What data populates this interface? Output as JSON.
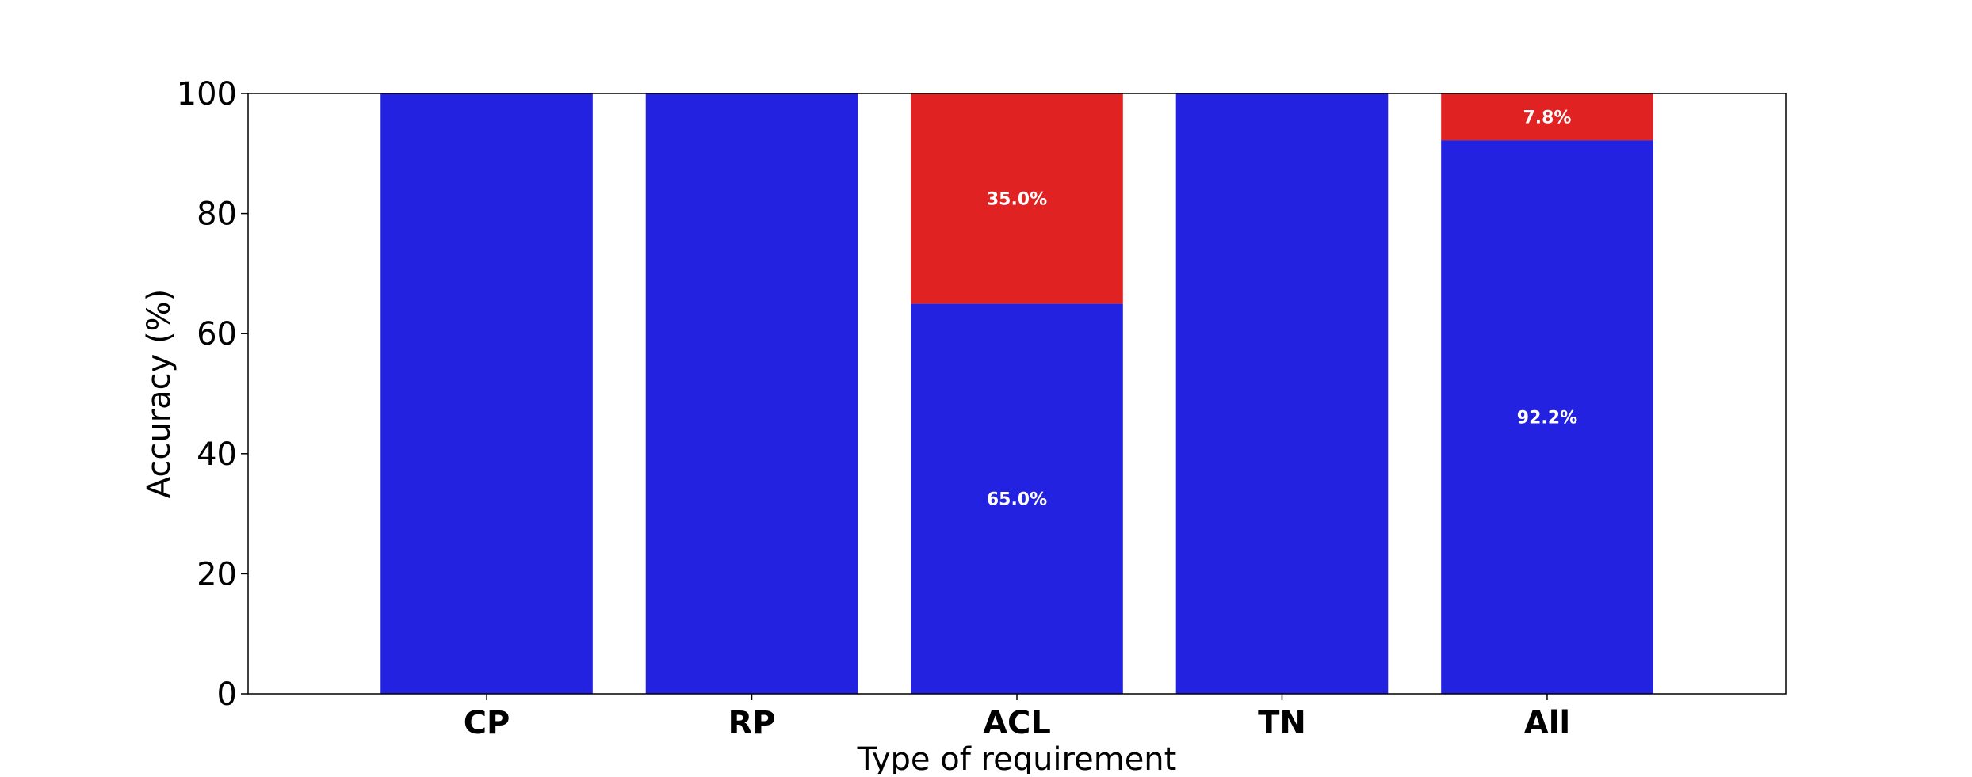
{
  "chart_data": {
    "type": "bar",
    "stacked": true,
    "categories": [
      "CP",
      "RP",
      "ACL",
      "TN",
      "All"
    ],
    "series": [
      {
        "values": [
          100,
          100,
          65.0,
          100,
          92.2
        ],
        "color": "#2222e0",
        "labels": [
          "",
          "",
          "65.0%",
          "",
          "92.2%"
        ]
      },
      {
        "values": [
          0,
          0,
          35.0,
          0,
          7.8
        ],
        "color": "#e02222",
        "labels": [
          "",
          "",
          "35.0%",
          "",
          "7.8%"
        ]
      }
    ],
    "title": "",
    "xlabel": "Type of requirement",
    "ylabel": "Accuracy (%)",
    "ylim": [
      0,
      100
    ],
    "yticks": [
      0,
      20,
      40,
      60,
      80,
      100
    ],
    "grid": false
  }
}
